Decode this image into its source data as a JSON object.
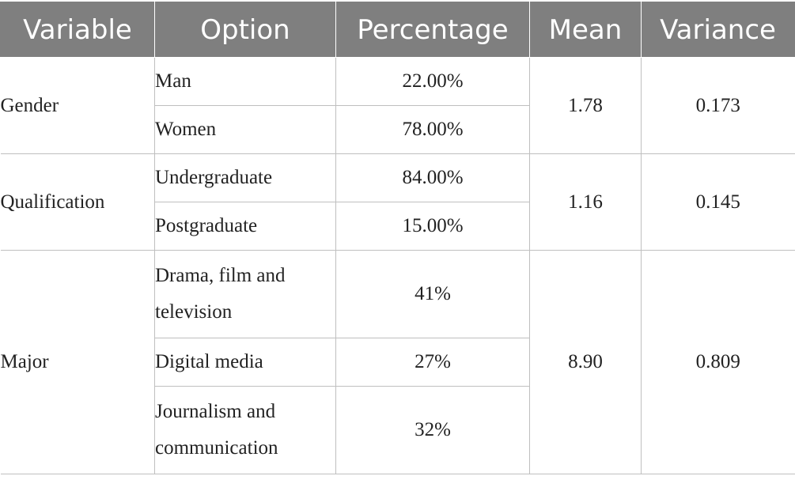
{
  "table": {
    "headers": [
      "Variable",
      "Option",
      "Percentage",
      "Mean",
      "Variance"
    ],
    "groups": [
      {
        "variable": "Gender",
        "mean": "1.78",
        "variance": "0.173",
        "rows": [
          {
            "option": "Man",
            "percentage": "22.00%"
          },
          {
            "option": "Women",
            "percentage": "78.00%"
          }
        ]
      },
      {
        "variable": "Qualification",
        "mean": "1.16",
        "variance": "0.145",
        "rows": [
          {
            "option": "Undergraduate",
            "percentage": "84.00%"
          },
          {
            "option": "Postgraduate",
            "percentage": "15.00%"
          }
        ]
      },
      {
        "variable": "Major",
        "mean": "8.90",
        "variance": "0.809",
        "rows": [
          {
            "option": "Drama, film and television",
            "percentage": "41%"
          },
          {
            "option": "Digital media",
            "percentage": "27%"
          },
          {
            "option": "Journalism and communication",
            "percentage": "32%"
          }
        ]
      }
    ]
  },
  "colors": {
    "header_bg": "#7f7f7f",
    "header_text": "#ffffff",
    "grid": "#bfbfbf",
    "body_text": "#222222"
  }
}
